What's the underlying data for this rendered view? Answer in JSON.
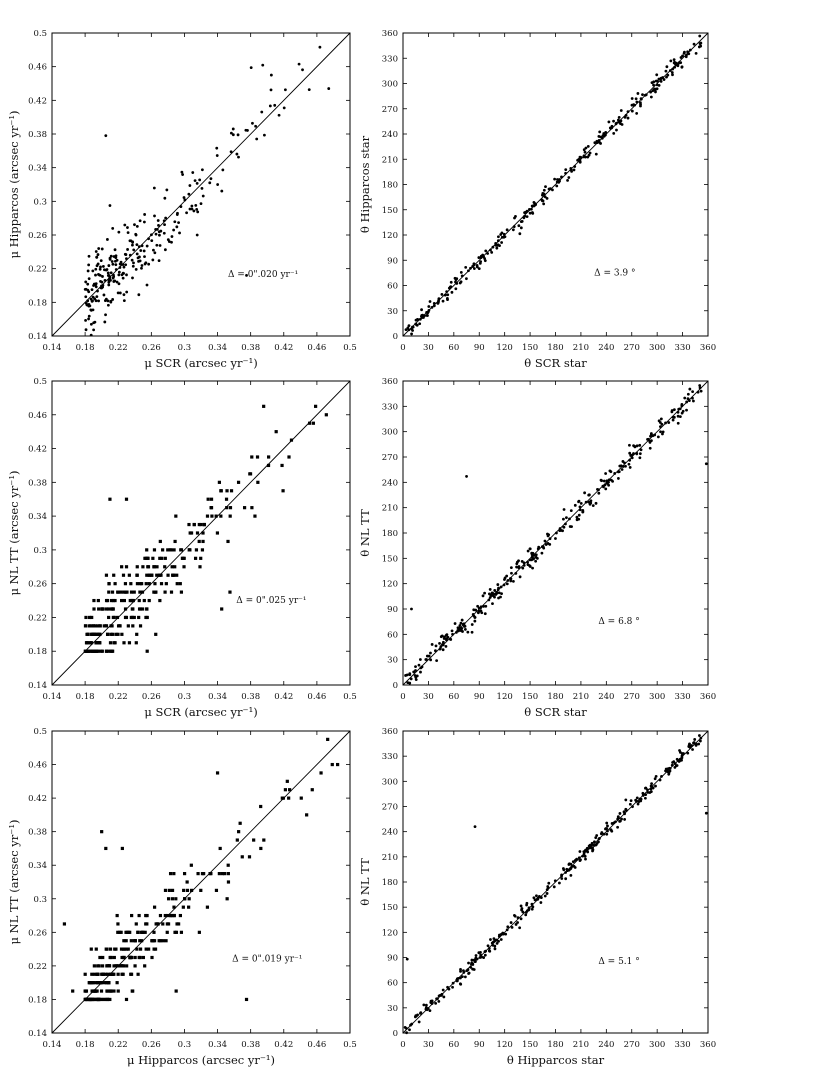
{
  "chart_data": [
    {
      "type": "scatter",
      "xlabel": "μ SCR (arcsec yr⁻¹)",
      "ylabel": "μ Hipparcos (arcsec yr⁻¹)",
      "xlim": [
        0.14,
        0.5
      ],
      "ylim": [
        0.14,
        0.5
      ],
      "xticks": [
        "0.14",
        "0.18",
        "0.22",
        "0.26",
        "0.3",
        "0.34",
        "0.38",
        "0.42",
        "0.46",
        "0.5"
      ],
      "yticks": [
        "0.14",
        "0.18",
        "0.22",
        "0.26",
        "0.3",
        "0.34",
        "0.38",
        "0.42",
        "0.46",
        "0.5"
      ],
      "annotation": "Δ = 0\".020 yr⁻¹",
      "annotation_pos": [
        0.395,
        0.21
      ],
      "reference_line": "y = x",
      "point_style": "dot",
      "gen": {
        "kind": "pm",
        "n": 280,
        "seed": 11,
        "sigma": 0.022,
        "grid": 0
      },
      "extra_points": [
        [
          0.205,
          0.378
        ],
        [
          0.375,
          0.212
        ],
        [
          0.405,
          0.45
        ],
        [
          0.21,
          0.295
        ]
      ]
    },
    {
      "type": "scatter",
      "xlabel": "θ SCR star",
      "ylabel": "θ Hipparcos star",
      "xlim": [
        0,
        360
      ],
      "ylim": [
        0,
        360
      ],
      "xticks": [
        "0",
        "30",
        "60",
        "90",
        "120",
        "150",
        "180",
        "210",
        "240",
        "270",
        "300",
        "330",
        "360"
      ],
      "yticks": [
        "0",
        "30",
        "60",
        "90",
        "120",
        "150",
        "180",
        "210",
        "240",
        "270",
        "300",
        "330",
        "360"
      ],
      "annotation": "Δ = 3.9 °",
      "annotation_pos": [
        250,
        72
      ],
      "reference_line": "y = x",
      "point_style": "dot",
      "gen": {
        "kind": "pa",
        "n": 300,
        "seed": 23,
        "sigma": 4.5
      },
      "extra_points": []
    },
    {
      "type": "scatter",
      "xlabel": "μ SCR (arcsec yr⁻¹)",
      "ylabel": "μ NL TT (arcsec yr⁻¹)",
      "xlim": [
        0.14,
        0.5
      ],
      "ylim": [
        0.14,
        0.5
      ],
      "xticks": [
        "0.14",
        "0.18",
        "0.22",
        "0.26",
        "0.3",
        "0.34",
        "0.38",
        "0.42",
        "0.46",
        "0.5"
      ],
      "yticks": [
        "0.14",
        "0.18",
        "0.22",
        "0.26",
        "0.3",
        "0.34",
        "0.38",
        "0.42",
        "0.46",
        "0.5"
      ],
      "annotation": "Δ = 0\".025 yr⁻¹",
      "annotation_pos": [
        0.405,
        0.237
      ],
      "reference_line": "y = x",
      "point_style": "square",
      "gen": {
        "kind": "pm",
        "n": 300,
        "seed": 37,
        "sigma": 0.026,
        "grid": 0.01
      },
      "extra_points": [
        [
          0.21,
          0.36
        ],
        [
          0.23,
          0.36
        ],
        [
          0.255,
          0.18
        ],
        [
          0.345,
          0.23
        ],
        [
          0.355,
          0.25
        ]
      ]
    },
    {
      "type": "scatter",
      "xlabel": "θ SCR star",
      "ylabel": "θ NL TT",
      "xlim": [
        0,
        360
      ],
      "ylim": [
        0,
        360
      ],
      "xticks": [
        "0",
        "30",
        "60",
        "90",
        "120",
        "150",
        "180",
        "210",
        "240",
        "270",
        "300",
        "330",
        "360"
      ],
      "yticks": [
        "0",
        "30",
        "60",
        "90",
        "120",
        "150",
        "180",
        "210",
        "240",
        "270",
        "300",
        "330",
        "360"
      ],
      "annotation": "Δ = 6.8 °",
      "annotation_pos": [
        255,
        72
      ],
      "reference_line": "y = x",
      "point_style": "dot",
      "gen": {
        "kind": "pa",
        "n": 320,
        "seed": 51,
        "sigma": 6.0
      },
      "extra_points": [
        [
          75,
          247
        ],
        [
          10,
          90
        ],
        [
          358,
          262
        ],
        [
          5,
          12
        ]
      ]
    },
    {
      "type": "scatter",
      "xlabel": "μ Hipparcos (arcsec yr⁻¹)",
      "ylabel": "μ NL TT (arcsec yr⁻¹)",
      "xlim": [
        0.14,
        0.5
      ],
      "ylim": [
        0.14,
        0.5
      ],
      "xticks": [
        "0.14",
        "0.18",
        "0.22",
        "0.26",
        "0.3",
        "0.34",
        "0.38",
        "0.42",
        "0.46",
        "0.5"
      ],
      "yticks": [
        "0.14",
        "0.18",
        "0.22",
        "0.26",
        "0.3",
        "0.34",
        "0.38",
        "0.42",
        "0.46",
        "0.5"
      ],
      "annotation": "Δ = 0\".019 yr⁻¹",
      "annotation_pos": [
        0.4,
        0.225
      ],
      "reference_line": "y = x",
      "point_style": "square",
      "gen": {
        "kind": "pm",
        "n": 290,
        "seed": 73,
        "sigma": 0.02,
        "grid": 0.01
      },
      "extra_points": [
        [
          0.2,
          0.38
        ],
        [
          0.205,
          0.36
        ],
        [
          0.225,
          0.36
        ],
        [
          0.155,
          0.27
        ],
        [
          0.165,
          0.19
        ],
        [
          0.375,
          0.18
        ],
        [
          0.29,
          0.19
        ],
        [
          0.34,
          0.45
        ],
        [
          0.23,
          0.18
        ]
      ]
    },
    {
      "type": "scatter",
      "xlabel": "θ Hipparcos star",
      "ylabel": "θ NL TT",
      "xlim": [
        0,
        360
      ],
      "ylim": [
        0,
        360
      ],
      "xticks": [
        "0",
        "30",
        "60",
        "90",
        "120",
        "150",
        "180",
        "210",
        "240",
        "270",
        "300",
        "330",
        "360"
      ],
      "yticks": [
        "0",
        "30",
        "60",
        "90",
        "120",
        "150",
        "180",
        "210",
        "240",
        "270",
        "300",
        "330",
        "360"
      ],
      "annotation": "Δ = 5.1 °",
      "annotation_pos": [
        255,
        82
      ],
      "reference_line": "y = x",
      "point_style": "dot",
      "gen": {
        "kind": "pa",
        "n": 320,
        "seed": 89,
        "sigma": 4.0
      },
      "extra_points": [
        [
          85,
          246
        ],
        [
          5,
          88
        ],
        [
          358,
          262
        ]
      ]
    }
  ]
}
